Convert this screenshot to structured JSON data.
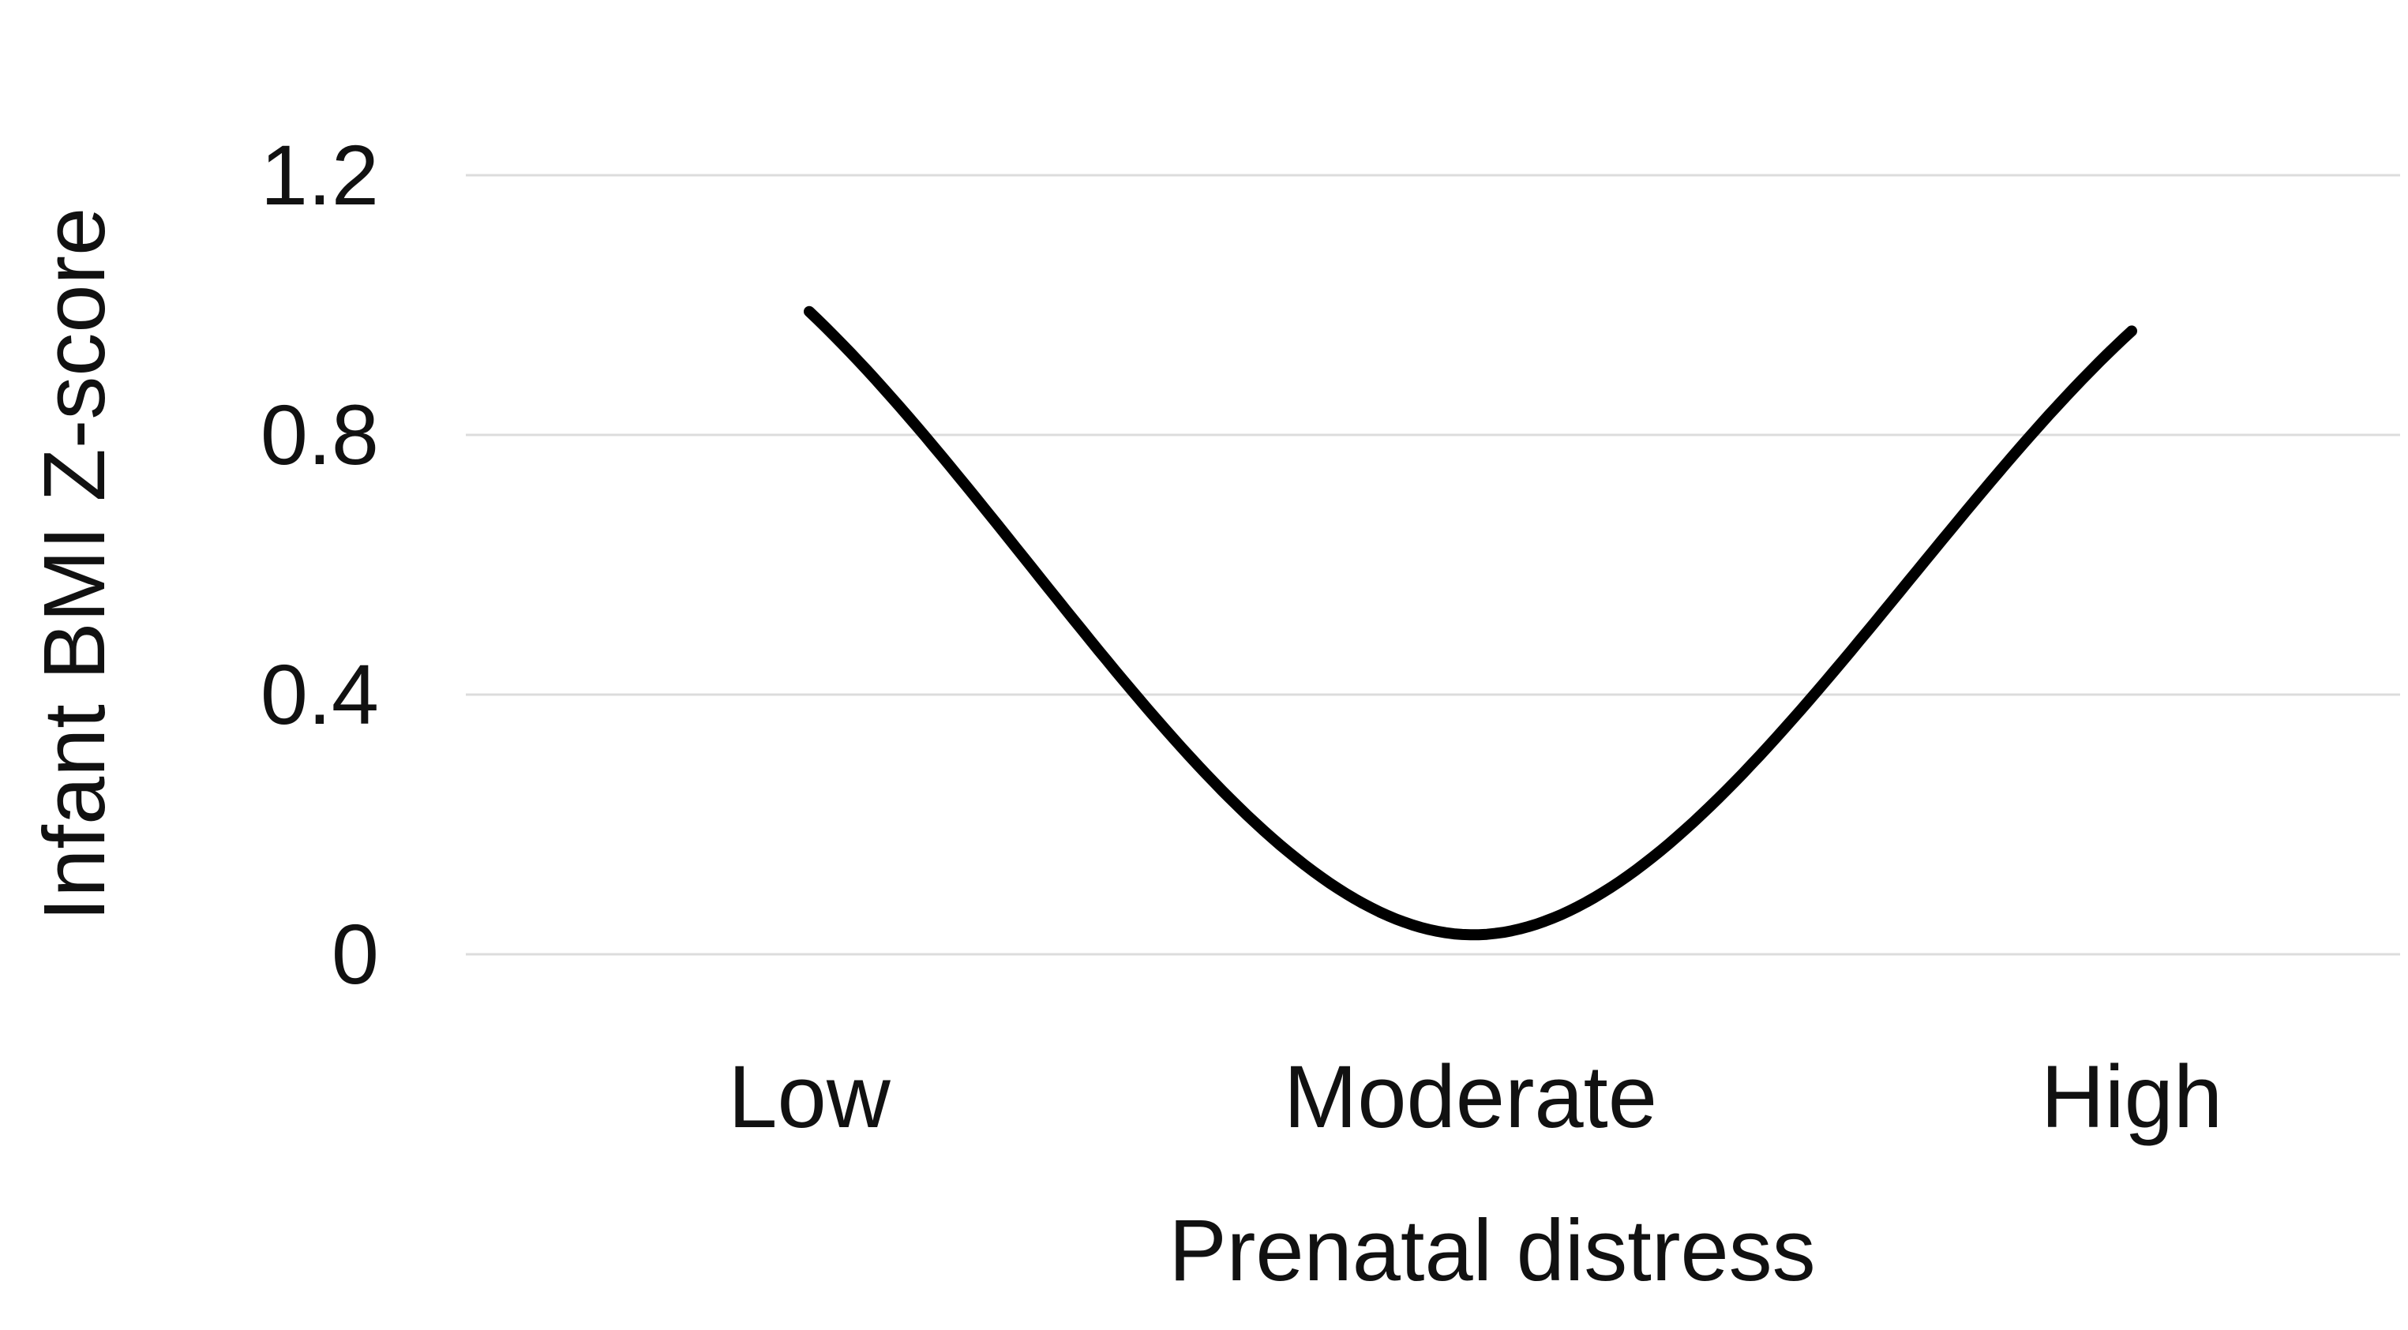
{
  "chart_data": {
    "type": "line",
    "smooth": true,
    "title": "",
    "xlabel": "Prenatal distress",
    "ylabel": "Infant BMI Z-score",
    "categories": [
      "Low",
      "Moderate",
      "High"
    ],
    "series": [
      {
        "name": "Infant BMI Z-score",
        "values": [
          0.99,
          0.03,
          0.96
        ]
      }
    ],
    "ylim": [
      0,
      1.2
    ],
    "y_ticks": [
      "1.2",
      "0.8",
      "0.4",
      "0"
    ],
    "y_tick_values": [
      1.2,
      0.8,
      0.4,
      0
    ],
    "grid": "horizontal",
    "legend_position": "none",
    "line_color": "#000000",
    "gridline_color": "#dcdcdc",
    "background": "#ffffff"
  }
}
